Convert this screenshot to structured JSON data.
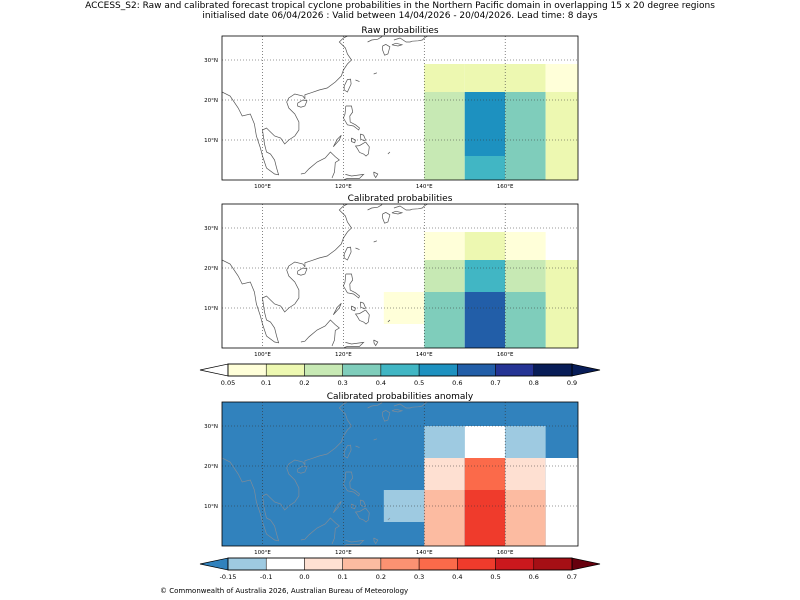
{
  "header": {
    "line1": "ACCESS_S2: Raw and calibrated forecast tropical cyclone probabilities in the Northern Pacific domain in overlapping 15 x 20 degree regions",
    "line2": "initialised date 06/04/2026 :  Valid between 14/04/2026 - 20/04/2026. Lead time: 8 days"
  },
  "footer": "© Commonwealth of Australia 2026, Australian Bureau of Meteorology",
  "map": {
    "lon_labels": [
      "100°E",
      "120°E",
      "140°E",
      "160°E"
    ],
    "lat_labels": [
      "30°N",
      "20°N",
      "10°N"
    ],
    "lon_ticks": [
      100,
      120,
      140,
      160
    ],
    "lat_ticks": [
      30,
      20,
      10
    ],
    "lon_range": [
      90,
      178
    ],
    "lat_range": [
      0,
      36
    ]
  },
  "panels": [
    {
      "title": "Raw probabilities",
      "kind": "prob",
      "cells": [
        {
          "lon": [
            140,
            150
          ],
          "lat": [
            22,
            29
          ],
          "v": 0.2
        },
        {
          "lon": [
            150,
            160
          ],
          "lat": [
            22,
            29
          ],
          "v": 0.2
        },
        {
          "lon": [
            160,
            170
          ],
          "lat": [
            22,
            29
          ],
          "v": 0.2
        },
        {
          "lon": [
            170,
            178
          ],
          "lat": [
            22,
            29
          ],
          "v": 0.1
        },
        {
          "lon": [
            140,
            150
          ],
          "lat": [
            0,
            22
          ],
          "v": 0.3
        },
        {
          "lon": [
            150,
            160
          ],
          "lat": [
            6,
            22
          ],
          "v": 0.6
        },
        {
          "lon": [
            150,
            160
          ],
          "lat": [
            0,
            6
          ],
          "v": 0.5
        },
        {
          "lon": [
            160,
            170
          ],
          "lat": [
            0,
            22
          ],
          "v": 0.4
        },
        {
          "lon": [
            170,
            178
          ],
          "lat": [
            0,
            22
          ],
          "v": 0.2
        }
      ]
    },
    {
      "title": "Calibrated probabilities",
      "kind": "prob",
      "cells": [
        {
          "lon": [
            140,
            150
          ],
          "lat": [
            22,
            29
          ],
          "v": 0.1
        },
        {
          "lon": [
            150,
            160
          ],
          "lat": [
            22,
            29
          ],
          "v": 0.2
        },
        {
          "lon": [
            160,
            170
          ],
          "lat": [
            22,
            29
          ],
          "v": 0.1
        },
        {
          "lon": [
            140,
            150
          ],
          "lat": [
            14,
            22
          ],
          "v": 0.3
        },
        {
          "lon": [
            150,
            160
          ],
          "lat": [
            14,
            22
          ],
          "v": 0.5
        },
        {
          "lon": [
            160,
            170
          ],
          "lat": [
            14,
            22
          ],
          "v": 0.3
        },
        {
          "lon": [
            170,
            178
          ],
          "lat": [
            0,
            22
          ],
          "v": 0.2
        },
        {
          "lon": [
            130,
            140
          ],
          "lat": [
            6,
            14
          ],
          "v": 0.1
        },
        {
          "lon": [
            140,
            150
          ],
          "lat": [
            0,
            14
          ],
          "v": 0.4
        },
        {
          "lon": [
            150,
            160
          ],
          "lat": [
            0,
            14
          ],
          "v": 0.7
        },
        {
          "lon": [
            160,
            170
          ],
          "lat": [
            0,
            14
          ],
          "v": 0.4
        }
      ]
    },
    {
      "title": "Calibrated probabilities anomaly",
      "kind": "anom",
      "background": -0.2,
      "cells": [
        {
          "lon": [
            140,
            150
          ],
          "lat": [
            22,
            30
          ],
          "v": -0.1
        },
        {
          "lon": [
            150,
            160
          ],
          "lat": [
            22,
            30
          ],
          "v": 0.0
        },
        {
          "lon": [
            160,
            170
          ],
          "lat": [
            22,
            30
          ],
          "v": -0.1
        },
        {
          "lon": [
            140,
            150
          ],
          "lat": [
            14,
            22
          ],
          "v": 0.1
        },
        {
          "lon": [
            150,
            160
          ],
          "lat": [
            14,
            22
          ],
          "v": 0.4
        },
        {
          "lon": [
            160,
            170
          ],
          "lat": [
            14,
            22
          ],
          "v": 0.1
        },
        {
          "lon": [
            170,
            178
          ],
          "lat": [
            0,
            22
          ],
          "v": 0.0
        },
        {
          "lon": [
            130,
            140
          ],
          "lat": [
            6,
            14
          ],
          "v": -0.1
        },
        {
          "lon": [
            140,
            150
          ],
          "lat": [
            0,
            14
          ],
          "v": 0.2
        },
        {
          "lon": [
            150,
            160
          ],
          "lat": [
            0,
            14
          ],
          "v": 0.5
        },
        {
          "lon": [
            160,
            170
          ],
          "lat": [
            0,
            14
          ],
          "v": 0.2
        }
      ]
    }
  ],
  "colorbars": [
    {
      "name": "probability",
      "labels": [
        "0.05",
        "0.1",
        "0.2",
        "0.3",
        "0.4",
        "0.5",
        "0.6",
        "0.7",
        "0.8",
        "0.9"
      ],
      "bin_colors": [
        "#ffffd9",
        "#edf8b1",
        "#c7e9b4",
        "#7fcdbb",
        "#41b6c4",
        "#1d91c0",
        "#225ea8",
        "#253494",
        "#081d58"
      ],
      "under_color": "#ffffff",
      "over_color": "#081d58"
    },
    {
      "name": "anomaly",
      "labels": [
        "-0.15",
        "-0.1",
        "0.0",
        "0.1",
        "0.2",
        "0.3",
        "0.4",
        "0.5",
        "0.6",
        "0.7"
      ],
      "bin_colors": [
        "#9ecae1",
        "#ffffff",
        "#fee0d2",
        "#fcbba1",
        "#fc9272",
        "#fb6a4a",
        "#ef3b2c",
        "#cb181d",
        "#a50f15"
      ],
      "under_color": "#3182bd",
      "over_color": "#67000d"
    }
  ],
  "colors": {
    "prob": {
      "0.1": "#ffffd9",
      "0.2": "#edf8b1",
      "0.3": "#c7e9b4",
      "0.4": "#7fcdbb",
      "0.5": "#41b6c4",
      "0.6": "#1d91c0",
      "0.7": "#225ea8"
    },
    "anom": {
      "-0.2": "#3182bd",
      "-0.1": "#9ecae1",
      "0.0": "#ffffff",
      "0.1": "#fee0d2",
      "0.2": "#fcbba1",
      "0.4": "#fb6a4a",
      "0.5": "#ef3b2c"
    },
    "coast": "#555555",
    "coast_on_anom": "#7f8c99",
    "grid": "#333333"
  }
}
